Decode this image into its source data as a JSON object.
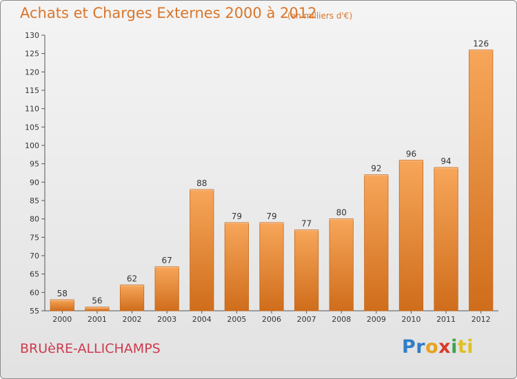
{
  "title": "Achats et Charges Externes 2000 à 2012",
  "subtitle": "(en milliers d'€)",
  "commune": "BRUèRE-ALLICHAMPS",
  "brand": {
    "letters": [
      "Pr",
      "o",
      "x",
      "i",
      "ti"
    ]
  },
  "colors": {
    "accent": "#d9752a",
    "commune": "#cc3a4d",
    "bar_top": "#f7a65a",
    "bar_bottom": "#cf6d1b"
  },
  "chart_data": {
    "type": "bar",
    "categories": [
      "2000",
      "2001",
      "2002",
      "2003",
      "2004",
      "2005",
      "2006",
      "2007",
      "2008",
      "2009",
      "2010",
      "2011",
      "2012"
    ],
    "values": [
      58,
      56,
      62,
      67,
      88,
      79,
      79,
      77,
      80,
      92,
      96,
      94,
      126
    ],
    "title": "Achats et Charges Externes 2000 à 2012",
    "subtitle": "(en milliers d'€)",
    "xlabel": "",
    "ylabel": "",
    "ylim": [
      55,
      130
    ],
    "yticks": [
      55,
      60,
      65,
      70,
      75,
      80,
      85,
      90,
      95,
      100,
      105,
      110,
      115,
      120,
      125,
      130
    ],
    "grid": false,
    "legend": "none"
  }
}
